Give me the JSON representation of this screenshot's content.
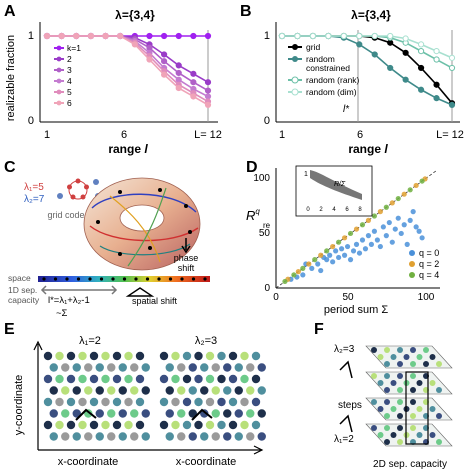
{
  "panels": {
    "A": {
      "letter": "A",
      "title": "λ={3,4}",
      "ylabel": "realizable fraction",
      "xlabel": "range",
      "xlabel_var": "l",
      "legend_header": "k=1",
      "legend": [
        "k=1",
        "2",
        "3",
        "4",
        "5",
        "6"
      ],
      "xticks": [
        "1",
        "6",
        "L= 12"
      ],
      "yticks": [
        "1",
        "0"
      ]
    },
    "B": {
      "letter": "B",
      "title": "λ={3,4}",
      "xlabel": "range",
      "xlabel_var": "l",
      "xticks": [
        "1",
        "6",
        "L= 12"
      ],
      "yticks": [
        "1",
        "0"
      ],
      "annotation": "l*",
      "legend": [
        "grid",
        "random constrained",
        "random (rank)",
        "random (dim)"
      ],
      "legend_lines": [
        "grid",
        "random",
        "constrained",
        "random (rank)",
        "random (dim)"
      ]
    },
    "C": {
      "letter": "C",
      "lambda1": "λ₁=5",
      "lambda2": "λ₂=7",
      "grid_code": "grid code",
      "phase_shift_1": "phase",
      "phase_shift_2": "shift",
      "space": "space",
      "sep_capacity_1": "1D sep.",
      "sep_capacity_2": "capacity",
      "formula": "l*=λ₁+λ₂-1",
      "approx": "~Σ",
      "spatial_shift": "spatial shift"
    },
    "D": {
      "letter": "D",
      "ylabel": "R",
      "xlabel": "period sum Σ",
      "xticks": [
        "0",
        "50",
        "100"
      ],
      "yticks": [
        "0",
        "50",
        "100"
      ],
      "inset_ylabel": "1",
      "inset_xticks": [
        "0",
        "2",
        "4",
        "6",
        "8"
      ],
      "inset_xlabel": "q",
      "inset_ratio": "R/Σ",
      "legend": [
        "q = 0",
        "q = 2",
        "q = 4"
      ]
    },
    "E": {
      "letter": "E",
      "lambda1": "λ₁=2",
      "lambda2": "λ₂=3",
      "ylabel": "y-coordinate",
      "xlabel": "x-coordinate"
    },
    "F": {
      "letter": "F",
      "lambda2": "λ₂=3",
      "steps": "steps",
      "lambda1": "λ₁=2",
      "capacity": "2D sep. capacity"
    }
  },
  "chart_data": [
    {
      "type": "line",
      "panel": "A",
      "title": "λ={3,4}",
      "xlabel": "range l",
      "ylabel": "realizable fraction",
      "x": [
        1,
        2,
        3,
        4,
        5,
        6,
        7,
        8,
        9,
        10,
        11,
        12
      ],
      "xlim": [
        1,
        12
      ],
      "ylim": [
        0,
        1
      ],
      "series": [
        {
          "name": "k=1",
          "color": "#a020f0",
          "values": [
            1,
            1,
            1,
            1,
            1,
            1,
            1,
            1,
            1,
            1,
            1,
            1
          ]
        },
        {
          "name": "2",
          "color": "#9a3cc8",
          "values": [
            1,
            1,
            1,
            1,
            1,
            1,
            0.98,
            0.9,
            0.78,
            0.65,
            0.55,
            0.45
          ]
        },
        {
          "name": "3",
          "color": "#b060c8",
          "values": [
            1,
            1,
            1,
            1,
            1,
            1,
            0.96,
            0.86,
            0.7,
            0.56,
            0.45,
            0.35
          ]
        },
        {
          "name": "4",
          "color": "#c47cd0",
          "values": [
            1,
            1,
            1,
            1,
            1,
            1,
            0.94,
            0.8,
            0.62,
            0.48,
            0.37,
            0.28
          ]
        },
        {
          "name": "5",
          "color": "#e08cbc",
          "values": [
            1,
            1,
            1,
            1,
            1,
            1,
            0.92,
            0.76,
            0.58,
            0.42,
            0.32,
            0.22
          ]
        },
        {
          "name": "6",
          "color": "#f0a4b8",
          "values": [
            1,
            1,
            1,
            1,
            1,
            1,
            0.9,
            0.72,
            0.54,
            0.38,
            0.28,
            0.18
          ]
        }
      ]
    },
    {
      "type": "line",
      "panel": "B",
      "title": "λ={3,4}",
      "xlabel": "range l",
      "x": [
        1,
        2,
        3,
        4,
        5,
        6,
        7,
        8,
        9,
        10,
        11,
        12
      ],
      "xlim": [
        1,
        12
      ],
      "ylim": [
        0,
        1
      ],
      "series": [
        {
          "name": "grid",
          "color": "#000000",
          "values": [
            1,
            1,
            1,
            1,
            1,
            1,
            0.98,
            0.92,
            0.8,
            0.62,
            0.42,
            0.2
          ]
        },
        {
          "name": "random constrained",
          "color": "#3f8a8a",
          "values": [
            1,
            1,
            1,
            1,
            0.98,
            0.9,
            0.78,
            0.62,
            0.48,
            0.36,
            0.26,
            0.18
          ]
        },
        {
          "name": "random (rank)",
          "color": "#6cc0a8",
          "values": [
            1,
            1,
            1,
            1,
            1,
            1,
            1,
            0.98,
            0.92,
            0.82,
            0.72,
            0.62
          ]
        },
        {
          "name": "random (dim)",
          "color": "#a8e0d0",
          "values": [
            1,
            1,
            1,
            1,
            1,
            1,
            1,
            1,
            0.97,
            0.9,
            0.82,
            0.74
          ]
        }
      ]
    },
    {
      "type": "scatter",
      "panel": "D",
      "xlabel": "period sum Σ",
      "ylabel": "R",
      "xlim": [
        0,
        110
      ],
      "ylim": [
        0,
        110
      ],
      "series": [
        {
          "name": "q = 0",
          "color": "#4a90d9",
          "points": [
            [
              10,
              8
            ],
            [
              14,
              10
            ],
            [
              18,
              12
            ],
            [
              20,
              22
            ],
            [
              24,
              18
            ],
            [
              28,
              22
            ],
            [
              30,
              16
            ],
            [
              32,
              28
            ],
            [
              34,
              26
            ],
            [
              36,
              30
            ],
            [
              38,
              24
            ],
            [
              40,
              34
            ],
            [
              42,
              28
            ],
            [
              44,
              36
            ],
            [
              46,
              30
            ],
            [
              48,
              38
            ],
            [
              50,
              26
            ],
            [
              52,
              34
            ],
            [
              54,
              40
            ],
            [
              56,
              32
            ],
            [
              58,
              44
            ],
            [
              60,
              36
            ],
            [
              62,
              48
            ],
            [
              64,
              40
            ],
            [
              66,
              52
            ],
            [
              68,
              44
            ],
            [
              70,
              38
            ],
            [
              72,
              56
            ],
            [
              74,
              48
            ],
            [
              76,
              60
            ],
            [
              78,
              42
            ],
            [
              80,
              54
            ],
            [
              82,
              64
            ],
            [
              84,
              50
            ],
            [
              86,
              58
            ],
            [
              88,
              40
            ],
            [
              90,
              62
            ],
            [
              92,
              70
            ],
            [
              94,
              56
            ],
            [
              96,
              52
            ],
            [
              98,
              46
            ]
          ]
        },
        {
          "name": "q = 2",
          "color": "#e0a030",
          "points": [
            [
              8,
              8
            ],
            [
              15,
              15
            ],
            [
              22,
              22
            ],
            [
              30,
              30
            ],
            [
              38,
              38
            ],
            [
              46,
              46
            ],
            [
              54,
              54
            ],
            [
              62,
              62
            ],
            [
              70,
              70
            ],
            [
              78,
              78
            ],
            [
              86,
              86
            ],
            [
              94,
              94
            ],
            [
              100,
              100
            ]
          ]
        },
        {
          "name": "q = 4",
          "color": "#70b040",
          "points": [
            [
              6,
              6
            ],
            [
              12,
              12
            ],
            [
              18,
              18
            ],
            [
              26,
              26
            ],
            [
              34,
              34
            ],
            [
              42,
              42
            ],
            [
              50,
              50
            ],
            [
              58,
              58
            ],
            [
              66,
              66
            ],
            [
              74,
              74
            ],
            [
              82,
              82
            ],
            [
              90,
              90
            ],
            [
              98,
              98
            ]
          ]
        }
      ]
    }
  ]
}
